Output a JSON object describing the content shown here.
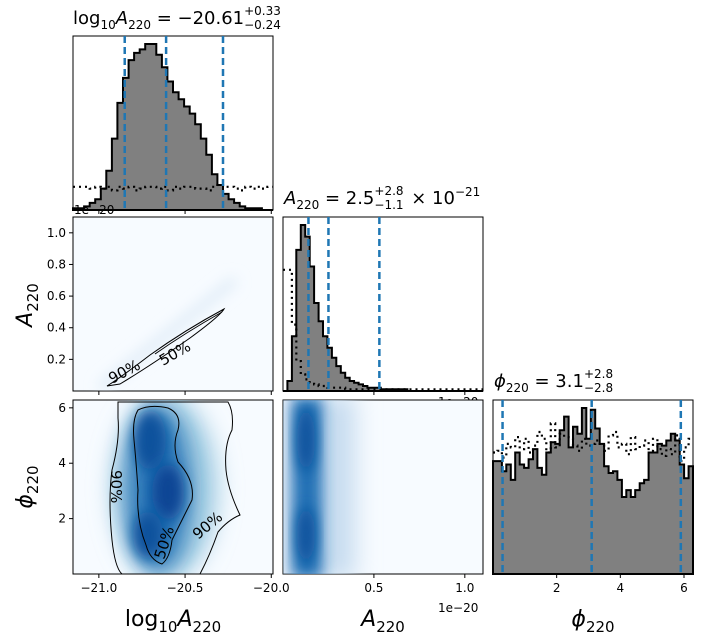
{
  "chart_data": {
    "type": "corner",
    "parameters": [
      {
        "key": "logA",
        "axis_label": "log10A220"
      },
      {
        "key": "A",
        "axis_label": "A220"
      },
      {
        "key": "phi",
        "axis_label": "φ220"
      }
    ],
    "panel_titles": {
      "logA": "log10A220 = −20.61 +0.33 −0.24",
      "A": "A220 = 2.5 +2.8 −1.1 × 10−21",
      "phi": "φ220 = 3.1 +2.8 −2.8"
    },
    "title_parts": {
      "logA": {
        "prefix": "log",
        "base": "10",
        "sym": "A",
        "sub": "220",
        "eq": " = −20.61",
        "sup": "+0.33",
        "low": "−0.24"
      },
      "A": {
        "sym": "A",
        "sub": "220",
        "eq": " = 2.5",
        "sup": "+2.8",
        "low": "−1.1",
        "tail": " × 10",
        "exp": "−21"
      },
      "phi": {
        "sym": "ϕ",
        "sub": "220",
        "eq": " = 3.1",
        "sup": "+2.8",
        "low": "−2.8"
      }
    },
    "axis_labels": {
      "logA": {
        "prefix": "log",
        "base": "10",
        "sym": "A",
        "sub": "220"
      },
      "A": {
        "sym": "A",
        "sub": "220"
      },
      "phi": {
        "sym": "ϕ",
        "sub": "220"
      }
    },
    "ranges": {
      "logA": [
        -21.15,
        -19.99
      ],
      "A": [
        0.0,
        1.1
      ],
      "phi": [
        0.0,
        6.283
      ]
    },
    "ticks": {
      "logA": {
        "values": [
          -21.0,
          -20.5,
          -20.0
        ],
        "labels": [
          "−21.0",
          "−20.5",
          "−20.0"
        ]
      },
      "A": {
        "values": [
          0.2,
          0.4,
          0.6,
          0.8,
          1.0
        ],
        "labels": [
          "0.2",
          "0.4",
          "0.6",
          "0.8",
          "1.0"
        ]
      },
      "A_bottom": {
        "values": [
          0.5,
          1.0
        ],
        "labels": [
          "0.5",
          "1.0"
        ]
      },
      "phi": {
        "values": [
          2,
          4,
          6
        ],
        "labels": [
          "2",
          "4",
          "6"
        ]
      }
    },
    "offset_text": "1e−20",
    "quantile_lines": {
      "logA": [
        -20.85,
        -20.61,
        -20.28
      ],
      "A": [
        0.14,
        0.25,
        0.53
      ],
      "phi": [
        0.3,
        3.1,
        5.9
      ]
    },
    "histograms": {
      "logA": [
        1,
        1,
        2,
        4,
        6,
        12,
        22,
        40,
        60,
        74,
        84,
        88,
        90,
        93,
        93,
        87,
        80,
        72,
        66,
        62,
        58,
        54,
        48,
        40,
        31,
        20,
        14,
        9,
        6,
        4,
        2,
        1,
        1,
        1,
        0,
        0
      ],
      "A": [
        0,
        6,
        33,
        85,
        100,
        93,
        75,
        53,
        42,
        33,
        26,
        20,
        15,
        11,
        8,
        6,
        5,
        4,
        3,
        2,
        2,
        2,
        1,
        1,
        1,
        1,
        1,
        1,
        0,
        0,
        0,
        0,
        0,
        0,
        0,
        0,
        0,
        0,
        0,
        0,
        0,
        0,
        0,
        0,
        0
      ],
      "phi": [
        66,
        66,
        60,
        64,
        55,
        71,
        64,
        62,
        67,
        73,
        62,
        58,
        71,
        77,
        76,
        84,
        92,
        74,
        86,
        82,
        97,
        79,
        96,
        85,
        76,
        63,
        59,
        60,
        55,
        45,
        49,
        45,
        49,
        53,
        55,
        71,
        71,
        76,
        75,
        78,
        82,
        78,
        64,
        56,
        63
      ]
    },
    "prior_histograms": {
      "logA": [
        13,
        13,
        13,
        12,
        13,
        12,
        13,
        11,
        13,
        12,
        13,
        11,
        12,
        13,
        13,
        12,
        13,
        11,
        13,
        12,
        13,
        13,
        12,
        12,
        11,
        13,
        14,
        13,
        13,
        12,
        11,
        13,
        12,
        13,
        12,
        13
      ],
      "A": [
        73,
        73,
        40,
        18,
        10,
        7,
        5,
        4,
        3,
        3,
        2,
        2,
        2,
        2,
        1,
        1,
        1,
        1,
        1,
        1,
        1,
        1,
        1,
        1,
        1,
        1,
        1,
        1,
        1,
        1,
        1,
        1,
        1,
        1,
        1,
        1,
        1,
        1,
        1,
        1,
        1,
        1,
        1,
        1,
        1
      ],
      "phi": [
        71,
        72,
        68,
        76,
        74,
        80,
        73,
        79,
        71,
        75,
        83,
        79,
        71,
        88,
        74,
        82,
        80,
        79,
        75,
        72,
        79,
        75,
        76,
        78,
        75,
        72,
        81,
        83,
        74,
        76,
        70,
        80,
        73,
        75,
        78,
        72,
        79,
        73,
        69,
        73,
        70,
        81,
        66,
        74,
        79
      ]
    },
    "contour_labels": [
      "90%",
      "50%"
    ],
    "colors": {
      "hist_fill": "#808080",
      "hist_edge": "#000000",
      "quantile": "#1f77b4",
      "density": "#08519c"
    }
  }
}
